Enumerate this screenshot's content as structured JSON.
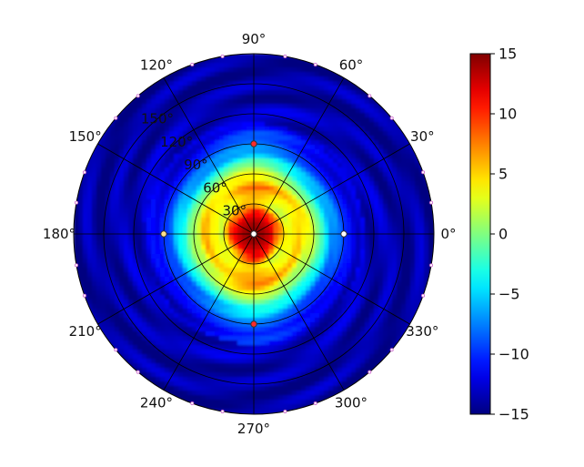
{
  "chart_data": {
    "type": "heatmap",
    "projection": "polar",
    "colormap": "jet",
    "title": "",
    "theta_ticks": [
      "0°",
      "30°",
      "60°",
      "90°",
      "120°",
      "150°",
      "180°",
      "210°",
      "240°",
      "270°",
      "300°",
      "330°"
    ],
    "theta_tick_values": [
      0,
      30,
      60,
      90,
      120,
      150,
      180,
      210,
      240,
      270,
      300,
      330
    ],
    "r_ticks": [
      "30°",
      "60°",
      "90°",
      "120°",
      "150°"
    ],
    "r_tick_values": [
      30,
      60,
      90,
      120,
      150
    ],
    "r_label_angle_deg": 130,
    "r_max": 180,
    "grid": true,
    "colorbar": {
      "range": [
        -15,
        15
      ],
      "ticks": [
        "15",
        "10",
        "5",
        "0",
        "−5",
        "−10",
        "−15"
      ],
      "tick_values": [
        15,
        10,
        5,
        0,
        -5,
        -10,
        -15
      ],
      "placement": "right"
    },
    "field": {
      "description_values": "value vs polar angle (r = elevation degrees from center)",
      "profile_r": [
        0,
        10,
        18,
        25,
        32,
        40,
        48,
        55,
        62,
        70,
        80,
        95,
        115,
        150,
        180
      ],
      "profile_value": [
        15,
        14,
        12,
        8,
        3,
        4,
        6,
        3,
        1,
        -3,
        -7,
        -11,
        -13,
        -14,
        -14
      ],
      "modulation": "fourfold, stronger along 90° and 270°"
    },
    "markers": [
      {
        "theta": 0,
        "r": 90,
        "color": "#ffffff"
      },
      {
        "theta": 90,
        "r": 90,
        "color": "#ff2a2a"
      },
      {
        "theta": 180,
        "r": 90,
        "color": "#ffe08a"
      },
      {
        "theta": 270,
        "r": 90,
        "color": "#ff2a2a"
      },
      {
        "theta": 0,
        "r": 0,
        "color": "#ffffff"
      }
    ]
  }
}
